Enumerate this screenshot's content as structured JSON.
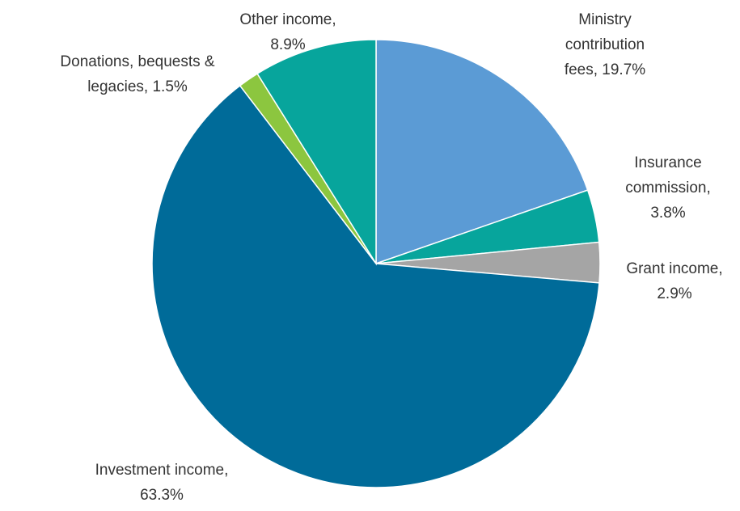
{
  "chart_data": {
    "type": "pie",
    "start_angle_deg": 0,
    "direction": "clockwise",
    "legend": "none",
    "slices": [
      {
        "label_lines": [
          "Ministry",
          "contribution",
          "fees, 19.7%"
        ],
        "value": 19.7,
        "color": "#5b9bd5"
      },
      {
        "label_lines": [
          "Insurance",
          "commission,",
          "3.8%"
        ],
        "value": 3.8,
        "color": "#07a59c"
      },
      {
        "label_lines": [
          "Grant income,",
          "2.9%"
        ],
        "value": 2.9,
        "color": "#a5a5a5"
      },
      {
        "label_lines": [
          "Investment income,",
          "63.3%"
        ],
        "value": 63.3,
        "color": "#006b99"
      },
      {
        "label_lines": [
          "Donations, bequests &",
          "legacies, 1.5%"
        ],
        "value": 1.5,
        "color": "#8cc63f"
      },
      {
        "label_lines": [
          "Other income,",
          "8.9%"
        ],
        "value": 8.9,
        "color": "#07a59c"
      }
    ]
  }
}
